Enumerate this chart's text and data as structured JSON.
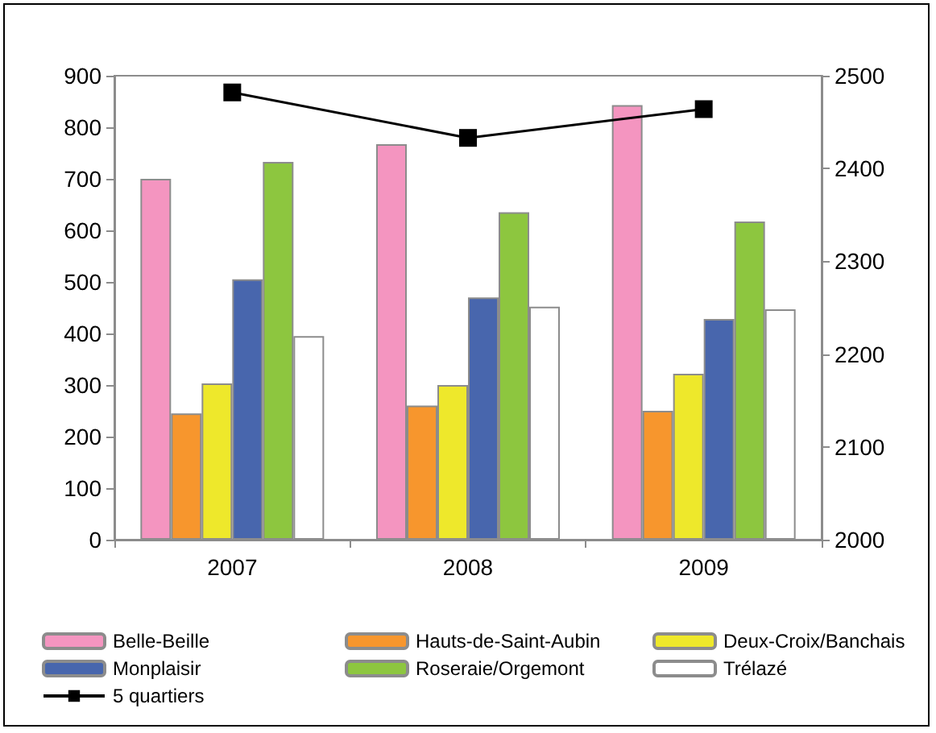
{
  "chart_data": {
    "type": "bar",
    "categories": [
      "2007",
      "2008",
      "2009"
    ],
    "series": [
      {
        "name": "Belle-Beille",
        "color": "#f495c0",
        "values": [
          700,
          767,
          843
        ]
      },
      {
        "name": "Hauts-de-Saint-Aubin",
        "color": "#f7962d",
        "values": [
          245,
          260,
          250
        ]
      },
      {
        "name": "Deux-Croix/Banchais",
        "color": "#eee82b",
        "values": [
          303,
          300,
          322
        ]
      },
      {
        "name": "Monplaisir",
        "color": "#4866ad",
        "values": [
          505,
          470,
          428
        ]
      },
      {
        "name": "Roseraie/Orgemont",
        "color": "#8dc63f",
        "values": [
          733,
          635,
          617
        ]
      },
      {
        "name": "Trélazé",
        "color": "#ffffff",
        "values": [
          395,
          452,
          447
        ]
      },
      {
        "name": "5 quartiers",
        "type": "line",
        "axis": "y2",
        "color": "#000000",
        "values": [
          2482,
          2433,
          2464
        ]
      }
    ],
    "ylim": [
      0,
      900
    ],
    "yticks": [
      0,
      100,
      200,
      300,
      400,
      500,
      600,
      700,
      800,
      900
    ],
    "y2lim": [
      2000,
      2500
    ],
    "y2ticks": [
      2000,
      2100,
      2200,
      2300,
      2400,
      2500
    ],
    "grid": false,
    "legend": "bottom",
    "marker": "square",
    "line_style": "solid"
  }
}
